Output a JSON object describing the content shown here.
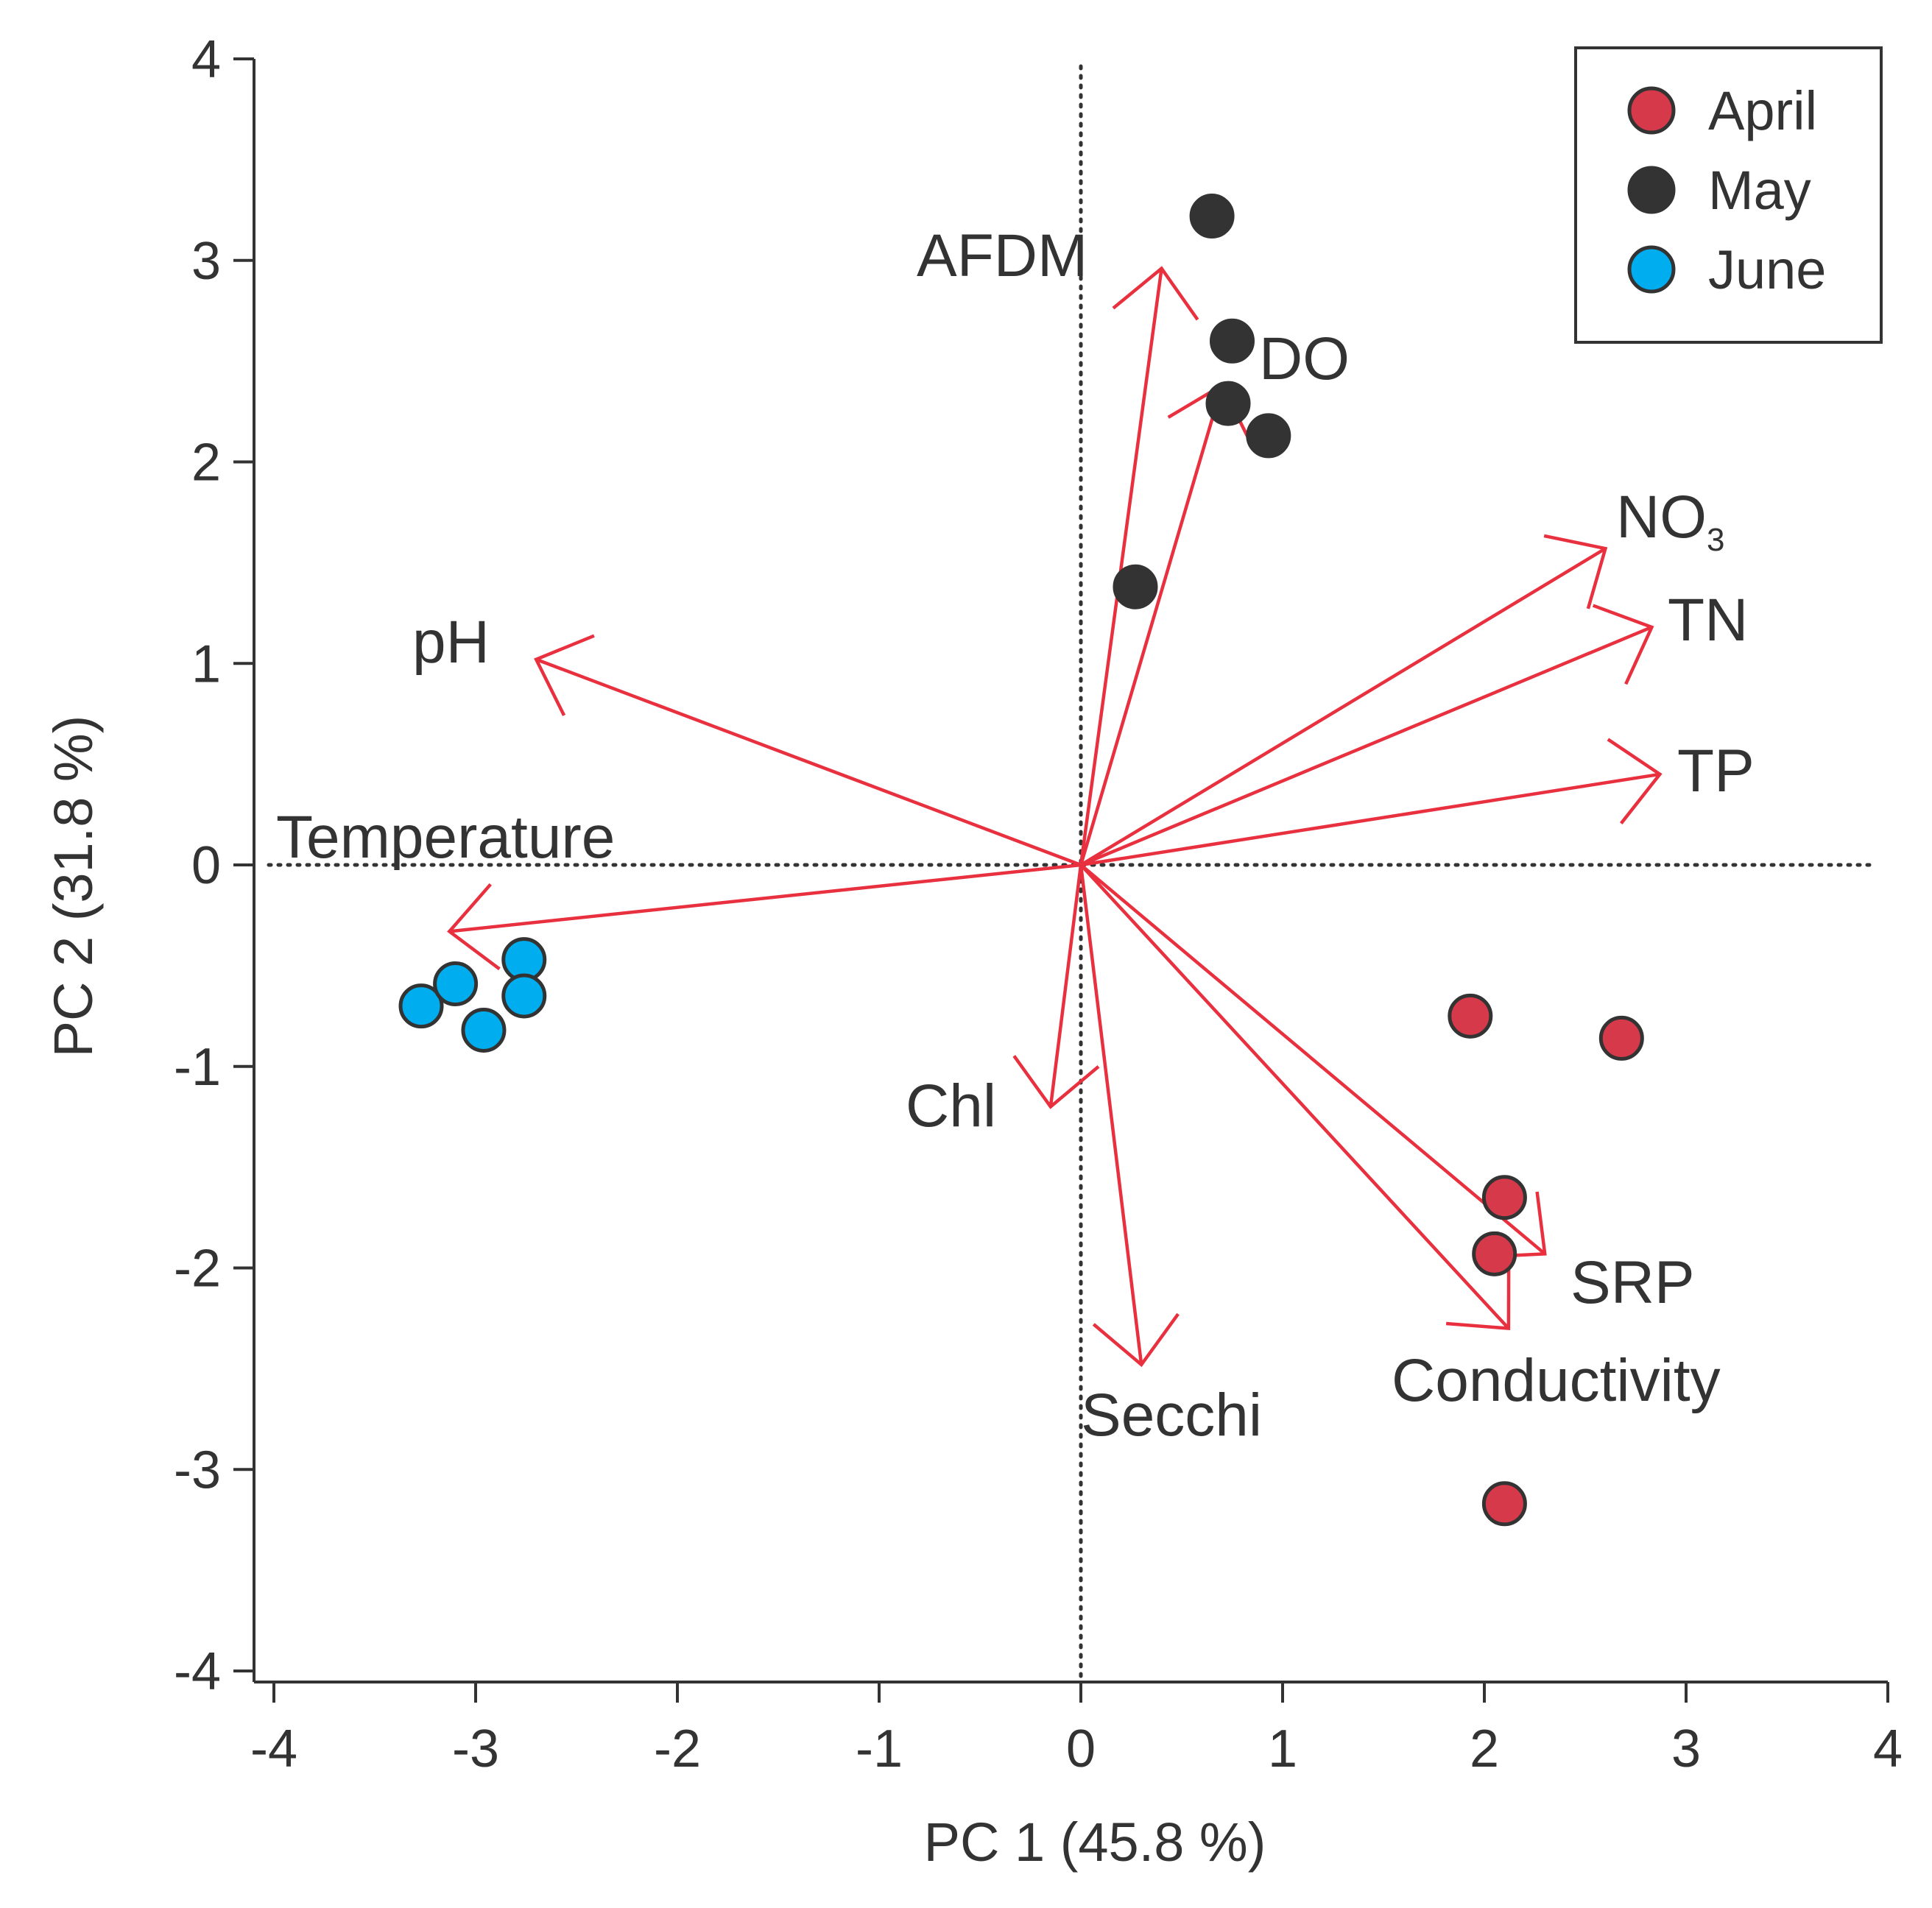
{
  "chart_data": {
    "type": "scatter",
    "xlabel": "PC 1  (45.8 %)",
    "ylabel": "PC 2  (31.8 %)",
    "xlim": [
      -4,
      4
    ],
    "ylim": [
      -4,
      4
    ],
    "xticks": [
      "-4",
      "-3",
      "-2",
      "-1",
      "0",
      "1",
      "2",
      "3",
      "4"
    ],
    "yticks": [
      "4",
      "3",
      "2",
      "1",
      "0",
      "-1",
      "-2",
      "-3",
      "-4"
    ],
    "reference_lines": {
      "x": 0,
      "y": 0,
      "style": "dotted"
    },
    "legend": {
      "placement": "top-right",
      "title": ""
    },
    "series": [
      {
        "name": "April",
        "color": "#d63a4a",
        "points": [
          {
            "x": 1.93,
            "y": -0.75
          },
          {
            "x": 2.68,
            "y": -0.86
          },
          {
            "x": 2.1,
            "y": -1.65
          },
          {
            "x": 2.05,
            "y": -1.93
          },
          {
            "x": 2.1,
            "y": -3.17
          }
        ]
      },
      {
        "name": "May",
        "color": "#333333",
        "points": [
          {
            "x": 0.65,
            "y": 3.22
          },
          {
            "x": 0.75,
            "y": 2.6
          },
          {
            "x": 0.73,
            "y": 2.29
          },
          {
            "x": 0.93,
            "y": 2.13
          },
          {
            "x": 0.27,
            "y": 1.38
          }
        ]
      },
      {
        "name": "June",
        "color": "#00aeef",
        "points": [
          {
            "x": -3.27,
            "y": -0.7
          },
          {
            "x": -3.1,
            "y": -0.59
          },
          {
            "x": -2.96,
            "y": -0.82
          },
          {
            "x": -2.76,
            "y": -0.47
          },
          {
            "x": -2.76,
            "y": -0.65
          }
        ]
      }
    ],
    "loadings": {
      "color": "#e8303f",
      "vectors": [
        {
          "label": "AFDM",
          "x": 0.4,
          "y": 2.96
        },
        {
          "label": "DO",
          "x": 0.7,
          "y": 2.38
        },
        {
          "label": "NO",
          "label_sub": "3",
          "x": 2.6,
          "y": 1.57
        },
        {
          "label": "TN",
          "x": 2.83,
          "y": 1.18
        },
        {
          "label": "TP",
          "x": 2.87,
          "y": 0.45
        },
        {
          "label": "pH",
          "x": -2.7,
          "y": 1.02
        },
        {
          "label": "Temperature",
          "x": -3.13,
          "y": -0.33
        },
        {
          "label": "Chl",
          "x": -0.15,
          "y": -1.2
        },
        {
          "label": "Secchi",
          "x": 0.3,
          "y": -2.48
        },
        {
          "label": "Conductivity",
          "x": 2.12,
          "y": -2.3
        },
        {
          "label": "SRP",
          "x": 2.3,
          "y": -1.93
        }
      ]
    }
  }
}
